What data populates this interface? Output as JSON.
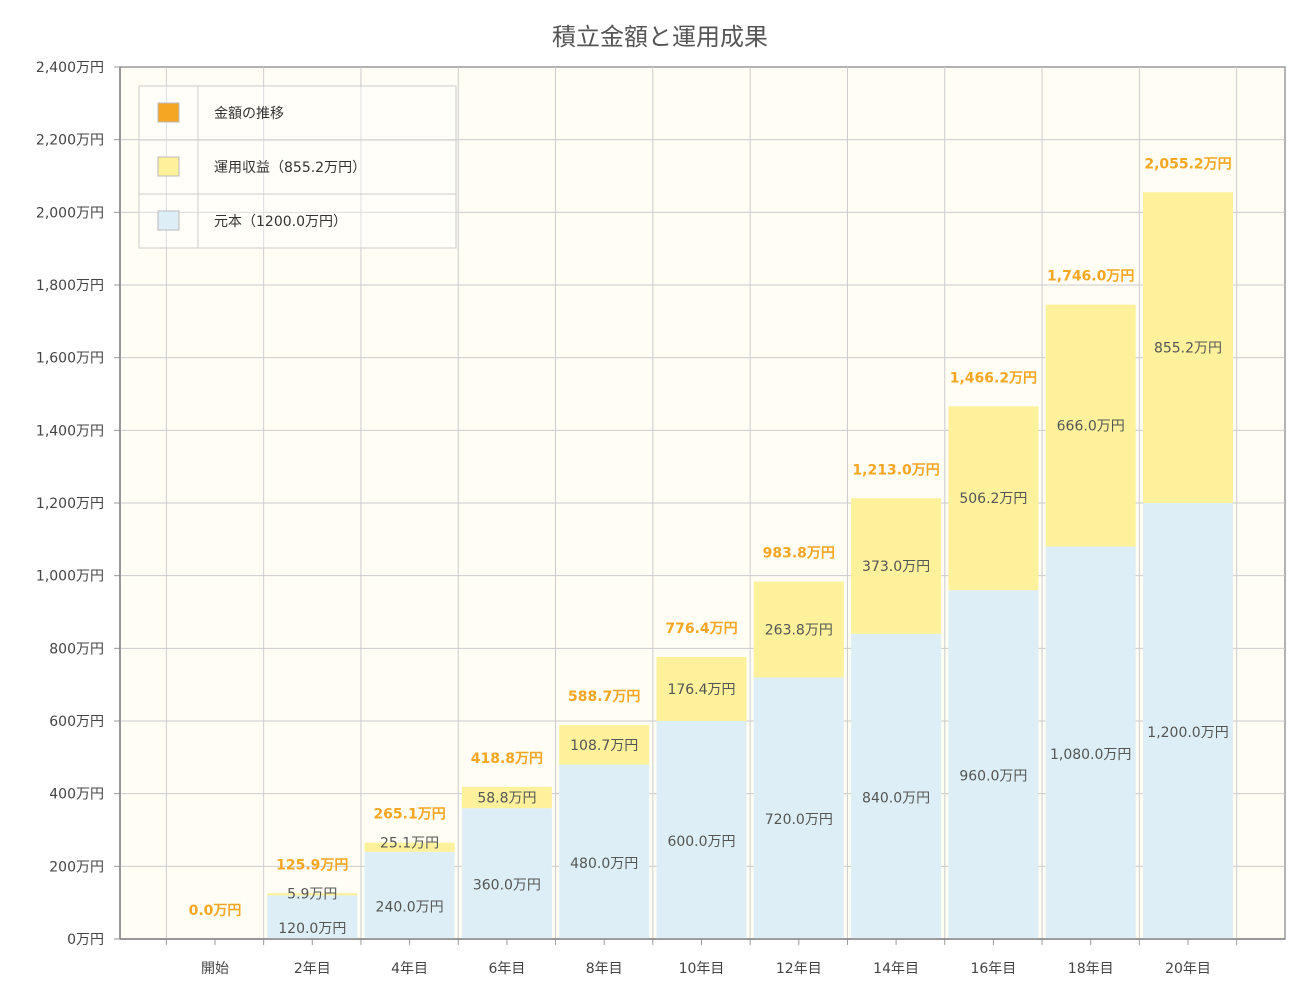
{
  "chart_data": {
    "type": "bar",
    "stacked": true,
    "title": "積立金額と運用成果",
    "categories": [
      "開始",
      "2年目",
      "4年目",
      "6年目",
      "8年目",
      "10年目",
      "12年目",
      "14年目",
      "16年目",
      "18年目",
      "20年目"
    ],
    "series": [
      {
        "name": "元本（1200.0万円）",
        "color": "#ddeef6",
        "values": [
          0,
          120.0,
          240.0,
          360.0,
          480.0,
          600.0,
          720.0,
          840.0,
          960.0,
          1080.0,
          1200.0
        ],
        "labels": [
          "",
          "120.0万円",
          "240.0万円",
          "360.0万円",
          "480.0万円",
          "600.0万円",
          "720.0万円",
          "840.0万円",
          "960.0万円",
          "1,080.0万円",
          "1,200.0万円"
        ]
      },
      {
        "name": "運用収益（855.2万円）",
        "color": "#fdf19b",
        "values": [
          0,
          5.9,
          25.1,
          58.8,
          108.7,
          176.4,
          263.8,
          373.0,
          506.2,
          666.0,
          855.2
        ],
        "labels": [
          "",
          "5.9万円",
          "25.1万円",
          "58.8万円",
          "108.7万円",
          "176.4万円",
          "263.8万円",
          "373.0万円",
          "506.2万円",
          "666.0万円",
          "855.2万円"
        ]
      }
    ],
    "totals": {
      "name": "金額の推移",
      "color": "#f5a623",
      "values": [
        0.0,
        125.9,
        265.1,
        418.8,
        588.7,
        776.4,
        983.8,
        1213.0,
        1466.2,
        1746.0,
        2055.2
      ],
      "labels": [
        "0.0万円",
        "125.9万円",
        "265.1万円",
        "418.8万円",
        "588.7万円",
        "776.4万円",
        "983.8万円",
        "1,213.0万円",
        "1,466.2万円",
        "1,746.0万円",
        "2,055.2万円"
      ]
    },
    "ylim": [
      0,
      2400
    ],
    "yticks": [
      0,
      200,
      400,
      600,
      800,
      1000,
      1200,
      1400,
      1600,
      1800,
      2000,
      2200,
      2400
    ],
    "ytick_labels": [
      "0万円",
      "200万円",
      "400万円",
      "600万円",
      "800万円",
      "1,000万円",
      "1,200万円",
      "1,400万円",
      "1,600万円",
      "1,800万円",
      "2,000万円",
      "2,200万円",
      "2,400万円"
    ],
    "grid": true,
    "legend_position": "top-left",
    "plot_background": "#fffdf4"
  }
}
